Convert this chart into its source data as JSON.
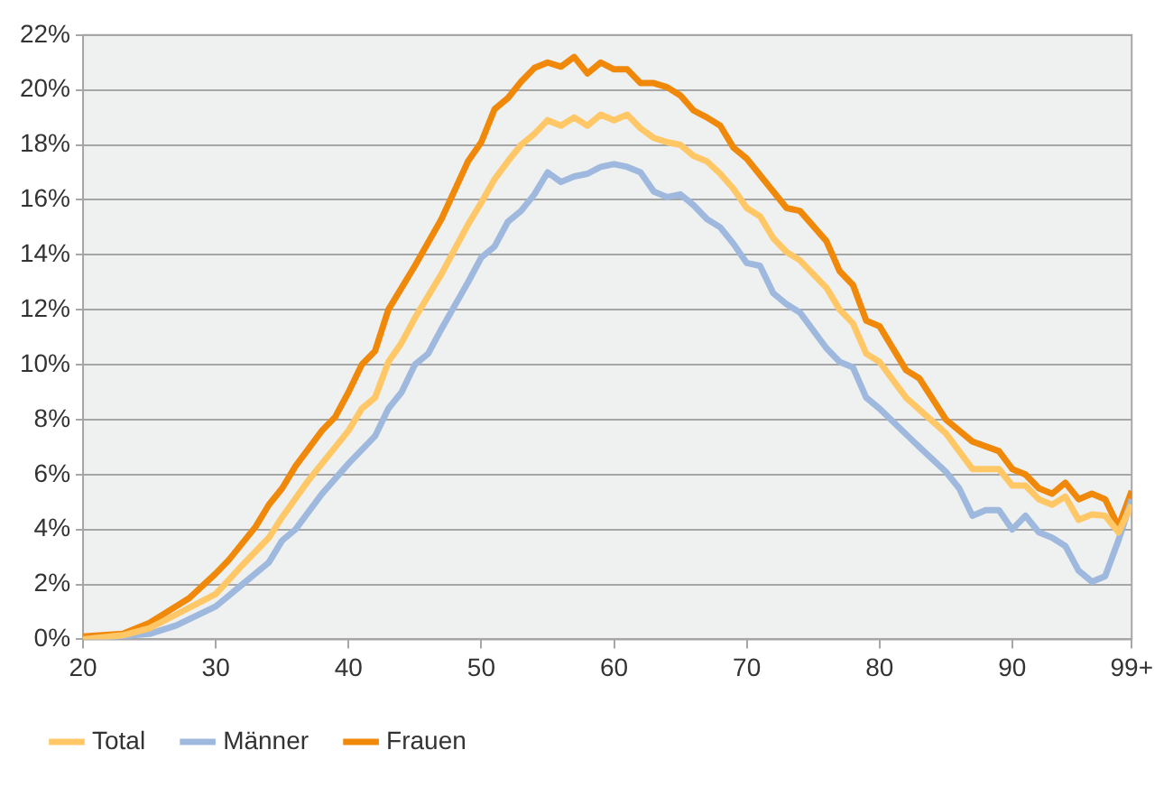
{
  "chart_data": {
    "type": "line",
    "xlim": [
      20,
      99
    ],
    "xticks": [
      20,
      30,
      40,
      50,
      60,
      70,
      80,
      90,
      {
        "value": 99,
        "label": "99+"
      }
    ],
    "ylim": [
      0,
      22
    ],
    "yticks": [
      {
        "value": 0,
        "label": "0%"
      },
      {
        "value": 2,
        "label": "2%"
      },
      {
        "value": 4,
        "label": "4%"
      },
      {
        "value": 6,
        "label": "6%"
      },
      {
        "value": 8,
        "label": "8%"
      },
      {
        "value": 10,
        "label": "10%"
      },
      {
        "value": 12,
        "label": "12%"
      },
      {
        "value": 14,
        "label": "14%"
      },
      {
        "value": 16,
        "label": "16%"
      },
      {
        "value": 18,
        "label": "18%"
      },
      {
        "value": 20,
        "label": "20%"
      },
      {
        "value": 22,
        "label": "22%"
      }
    ],
    "grid": "y",
    "legend": "bottom",
    "marker": "none",
    "line_style": "solid",
    "series": [
      {
        "name": "Total",
        "color": "#ffc766",
        "x": [
          20,
          23,
          25,
          27,
          30,
          32,
          34,
          35,
          37,
          39,
          40,
          41,
          42,
          43,
          44,
          45,
          47,
          49,
          50,
          51,
          52,
          53,
          54,
          55,
          56,
          57,
          58,
          59,
          60,
          61,
          62,
          63,
          64,
          65,
          66,
          67,
          68,
          69,
          70,
          71,
          72,
          73,
          74,
          76,
          77,
          78,
          79,
          80,
          82,
          85,
          87,
          89,
          90,
          91,
          92,
          93,
          94,
          95,
          96,
          97,
          98,
          99
        ],
        "values": [
          0.0,
          0.15,
          0.4,
          0.9,
          1.65,
          2.7,
          3.7,
          4.45,
          5.8,
          7.0,
          7.6,
          8.4,
          8.8,
          10.1,
          10.8,
          11.7,
          13.3,
          15.1,
          15.9,
          16.75,
          17.4,
          18.0,
          18.4,
          18.9,
          18.7,
          19.0,
          18.7,
          19.1,
          18.9,
          19.1,
          18.6,
          18.25,
          18.1,
          18.0,
          17.6,
          17.4,
          16.95,
          16.4,
          15.7,
          15.4,
          14.6,
          14.1,
          13.8,
          12.8,
          12.0,
          11.5,
          10.4,
          10.1,
          8.8,
          7.5,
          6.2,
          6.2,
          5.6,
          5.6,
          5.1,
          4.9,
          5.2,
          4.35,
          4.55,
          4.5,
          3.9,
          4.9
        ]
      },
      {
        "name": "Männer",
        "color": "#9fb9de",
        "x": [
          20,
          25,
          27,
          30,
          32,
          34,
          35,
          36,
          38,
          40,
          42,
          43,
          44,
          45,
          46,
          47,
          49,
          50,
          51,
          52,
          53,
          54,
          55,
          56,
          57,
          58,
          59,
          60,
          61,
          62,
          63,
          64,
          65,
          66,
          67,
          68,
          69,
          70,
          71,
          72,
          73,
          74,
          76,
          77,
          78,
          79,
          80,
          83,
          85,
          86,
          87,
          88,
          89,
          90,
          91,
          92,
          93,
          94,
          95,
          96,
          97,
          98,
          99
        ],
        "values": [
          0.0,
          0.2,
          0.5,
          1.2,
          2.0,
          2.8,
          3.6,
          4.0,
          5.3,
          6.4,
          7.4,
          8.4,
          9.0,
          10.0,
          10.4,
          11.3,
          13.0,
          13.9,
          14.3,
          15.2,
          15.6,
          16.2,
          17.0,
          16.65,
          16.85,
          16.95,
          17.2,
          17.3,
          17.2,
          17.0,
          16.3,
          16.1,
          16.2,
          15.8,
          15.3,
          15.0,
          14.4,
          13.7,
          13.6,
          12.6,
          12.2,
          11.9,
          10.6,
          10.1,
          9.9,
          8.8,
          8.4,
          7.0,
          6.1,
          5.5,
          4.5,
          4.7,
          4.7,
          4.0,
          4.5,
          3.9,
          3.7,
          3.4,
          2.5,
          2.1,
          2.3,
          3.6,
          5.1
        ]
      },
      {
        "name": "Frauen",
        "color": "#f0880a",
        "x": [
          20,
          23,
          25,
          27,
          28,
          30,
          31,
          33,
          34,
          35,
          36,
          38,
          39,
          40,
          41,
          42,
          43,
          44,
          45,
          47,
          49,
          50,
          51,
          52,
          53,
          54,
          55,
          56,
          57,
          58,
          59,
          60,
          61,
          62,
          63,
          64,
          65,
          66,
          67,
          68,
          69,
          70,
          71,
          72,
          73,
          74,
          76,
          77,
          78,
          79,
          80,
          82,
          83,
          85,
          87,
          89,
          90,
          91,
          92,
          93,
          94,
          95,
          96,
          97,
          98,
          99
        ],
        "values": [
          0.1,
          0.2,
          0.6,
          1.2,
          1.5,
          2.4,
          2.9,
          4.1,
          4.9,
          5.5,
          6.3,
          7.6,
          8.1,
          9.0,
          10.0,
          10.5,
          12.0,
          12.8,
          13.6,
          15.3,
          17.4,
          18.1,
          19.3,
          19.7,
          20.3,
          20.8,
          21.0,
          20.85,
          21.2,
          20.6,
          21.0,
          20.75,
          20.75,
          20.25,
          20.25,
          20.1,
          19.8,
          19.25,
          19.0,
          18.7,
          17.9,
          17.5,
          16.9,
          16.3,
          15.7,
          15.6,
          14.5,
          13.4,
          12.9,
          11.6,
          11.4,
          9.8,
          9.5,
          8.0,
          7.2,
          6.85,
          6.2,
          6.0,
          5.5,
          5.3,
          5.7,
          5.1,
          5.3,
          5.1,
          4.1,
          5.4
        ]
      }
    ]
  }
}
